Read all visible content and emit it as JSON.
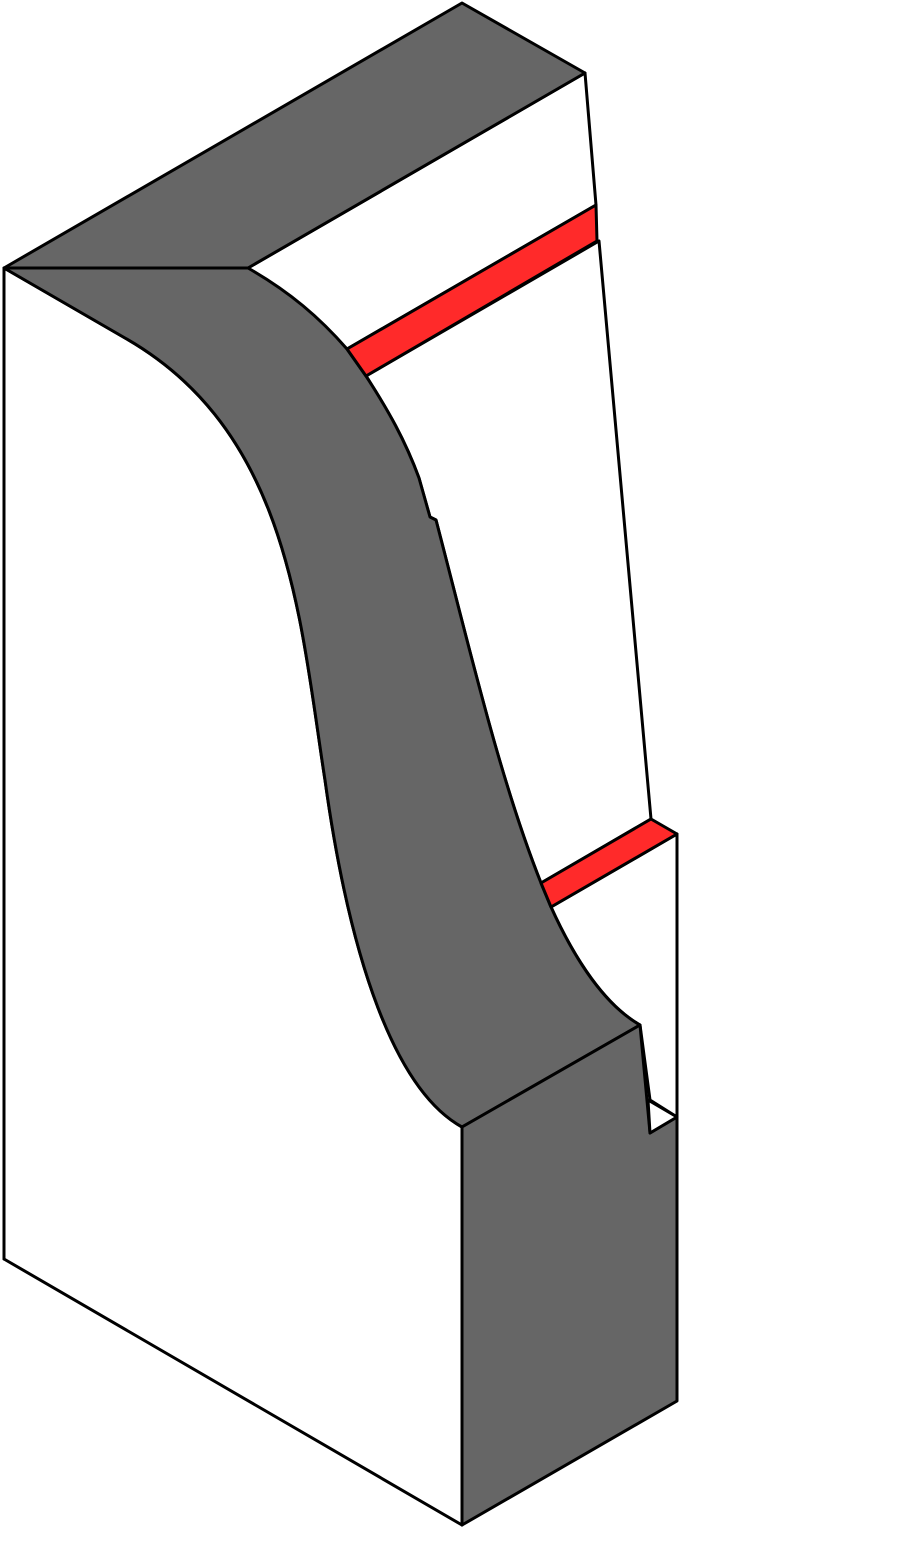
{
  "colors": {
    "background": "#ffffff",
    "outline": "#000000",
    "white_face": "#ffffff",
    "gray_face": "#666666",
    "accent_band": "#ff2a2a"
  },
  "parts": [
    {
      "name": "top-face",
      "fill": "gray"
    },
    {
      "name": "left-side-face",
      "fill": "white"
    },
    {
      "name": "curved-profile-face",
      "fill": "gray"
    },
    {
      "name": "front-face",
      "fill": "gray"
    },
    {
      "name": "back-panel",
      "fill": "white"
    },
    {
      "name": "upper-red-band",
      "fill": "red"
    },
    {
      "name": "lower-red-band",
      "fill": "red"
    }
  ]
}
